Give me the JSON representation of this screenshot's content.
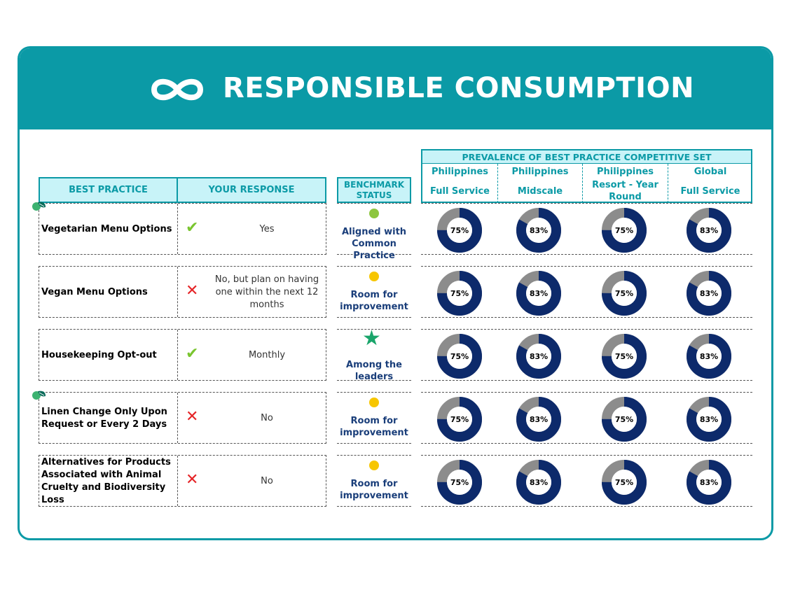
{
  "header": {
    "title": "RESPONSIBLE CONSUMPTION",
    "icon": "infinity-icon"
  },
  "columns": {
    "best_practice": "BEST PRACTICE",
    "your_response": "YOUR RESPONSE",
    "benchmark_status": "BENCHMARK STATUS",
    "prevalence_title": "PREVALENCE OF BEST PRACTICE COMPETITIVE SET",
    "segments": [
      {
        "line1": "Philippines",
        "line2": "Full Service"
      },
      {
        "line1": "Philippines",
        "line2": "Midscale"
      },
      {
        "line1": "Philippines",
        "line2": "Resort - Year Round"
      },
      {
        "line1": "Global",
        "line2": "Full Service"
      }
    ]
  },
  "rows": [
    {
      "practice": "Vegetarian Menu Options",
      "response_icon": "check",
      "response": "Yes",
      "status": "Aligned with Common Practice",
      "status_icon": "dot",
      "status_color": "#8dc63f",
      "leaf": true,
      "prevalence": [
        "75%",
        "83%",
        "75%",
        "83%"
      ],
      "prevalence_values": [
        0.75,
        0.83,
        0.75,
        0.83
      ]
    },
    {
      "practice": "Vegan Menu Options",
      "response_icon": "cross",
      "response": "No, but plan on having one within the next 12 months",
      "status": "Room for improvement",
      "status_icon": "dot",
      "status_color": "#f7c600",
      "leaf": false,
      "prevalence": [
        "75%",
        "83%",
        "75%",
        "83%"
      ],
      "prevalence_values": [
        0.75,
        0.83,
        0.75,
        0.83
      ]
    },
    {
      "practice": "Housekeeping Opt-out",
      "response_icon": "check",
      "response": "Monthly",
      "status": "Among the leaders",
      "status_icon": "star",
      "status_color": "#1aa56b",
      "leaf": false,
      "prevalence": [
        "75%",
        "83%",
        "75%",
        "83%"
      ],
      "prevalence_values": [
        0.75,
        0.83,
        0.75,
        0.83
      ]
    },
    {
      "practice": "Linen Change Only Upon Request or Every 2 Days",
      "response_icon": "cross",
      "response": "No",
      "status": "Room for improvement",
      "status_icon": "dot",
      "status_color": "#f7c600",
      "leaf": true,
      "prevalence": [
        "75%",
        "83%",
        "75%",
        "83%"
      ],
      "prevalence_values": [
        0.75,
        0.83,
        0.75,
        0.83
      ]
    },
    {
      "practice": "Alternatives for Products Associated with Animal Cruelty and Biodiversity Loss",
      "response_icon": "cross",
      "response": "No",
      "status": "Room for improvement",
      "status_icon": "dot",
      "status_color": "#f7c600",
      "leaf": false,
      "prevalence": [
        "75%",
        "83%",
        "75%",
        "83%"
      ],
      "prevalence_values": [
        0.75,
        0.83,
        0.75,
        0.83
      ]
    }
  ],
  "colors": {
    "accent": "#0b9aa6",
    "donut_fill": "#0d2a6b",
    "donut_rest": "#8c8c8c"
  }
}
